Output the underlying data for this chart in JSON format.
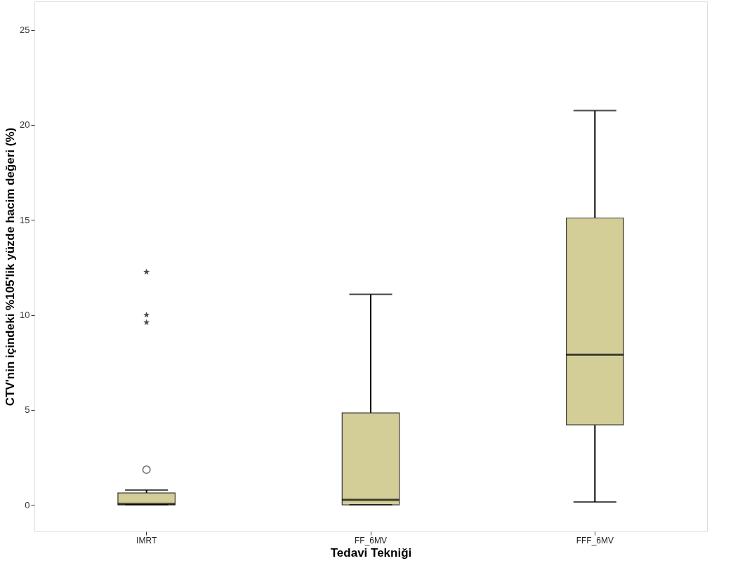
{
  "chart_data": {
    "type": "box",
    "xlabel": "Tedavi Tekniği",
    "ylabel": "CTV'nin içindeki %105'lik yüzde hacim değeri (%)",
    "categories": [
      "IMRT",
      "FF_6MV",
      "FFF_6MV"
    ],
    "boxes": [
      {
        "low": 0,
        "q1": 0,
        "median": 0.05,
        "q3": 0.63,
        "high": 0.78,
        "outliers": [
          1.85
        ]
      },
      {
        "low": 0,
        "q1": 0,
        "median": 0.26,
        "q3": 4.84,
        "high": 11.08
      },
      {
        "low": 0.15,
        "q1": 4.21,
        "median": 7.9,
        "q3": 15.1,
        "high": 20.75
      }
    ],
    "color": "#d3ce98",
    "series": [
      {
        "type": "scatter",
        "marker": "star",
        "color": "#000000",
        "x": [
          "IMRT",
          "IMRT",
          "IMRT"
        ],
        "values": [
          9.6,
          10.0,
          12.26
        ]
      }
    ],
    "ylim": [
      -1.4,
      26.5
    ],
    "yticks": [
      0,
      5,
      10,
      15,
      20,
      25
    ],
    "grid": false
  }
}
